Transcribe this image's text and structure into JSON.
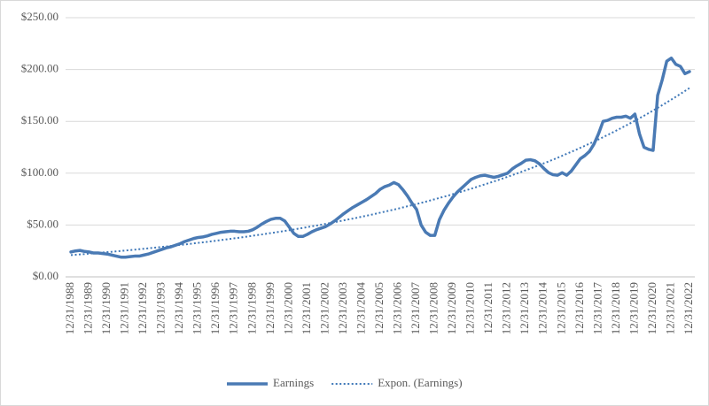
{
  "chart_data": {
    "type": "line",
    "categories": [
      "12/31/1988",
      null,
      null,
      null,
      "12/31/1989",
      null,
      null,
      null,
      "12/31/1990",
      null,
      null,
      null,
      "12/31/1991",
      null,
      null,
      null,
      "12/31/1992",
      null,
      null,
      null,
      "12/31/1993",
      null,
      null,
      null,
      "12/31/1994",
      null,
      null,
      null,
      "12/31/1995",
      null,
      null,
      null,
      "12/31/1996",
      null,
      null,
      null,
      "12/31/1997",
      null,
      null,
      null,
      "12/31/1998",
      null,
      null,
      null,
      "12/31/1999",
      null,
      null,
      null,
      "12/31/2000",
      null,
      null,
      null,
      "12/31/2001",
      null,
      null,
      null,
      "12/31/2002",
      null,
      null,
      null,
      "12/31/2003",
      null,
      null,
      null,
      "12/31/2004",
      null,
      null,
      null,
      "12/31/2005",
      null,
      null,
      null,
      "12/31/2006",
      null,
      null,
      null,
      "12/31/2007",
      null,
      null,
      null,
      "12/31/2008",
      null,
      null,
      null,
      "12/31/2009",
      null,
      null,
      null,
      "12/31/2010",
      null,
      null,
      null,
      "12/31/2011",
      null,
      null,
      null,
      "12/31/2012",
      null,
      null,
      null,
      "12/31/2013",
      null,
      null,
      null,
      "12/31/2014",
      null,
      null,
      null,
      "12/31/2015",
      null,
      null,
      null,
      "12/31/2016",
      null,
      null,
      null,
      "12/31/2017",
      null,
      null,
      null,
      "12/31/2018",
      null,
      null,
      null,
      "12/31/2019",
      null,
      null,
      null,
      "12/31/2020",
      null,
      null,
      null,
      "12/31/2021",
      null,
      null,
      null,
      "12/31/2022"
    ],
    "series": [
      {
        "name": "Earnings",
        "color": "#4a7ab4",
        "line_style": "solid",
        "values": [
          24,
          25,
          25.5,
          24.5,
          24,
          23,
          23,
          22.5,
          22,
          21,
          20,
          19,
          19,
          19.5,
          20,
          20,
          21,
          22,
          23.5,
          25,
          26.5,
          28,
          29,
          30.5,
          32,
          34,
          35.5,
          37,
          38,
          38.5,
          39.5,
          41,
          42,
          43,
          43.5,
          44,
          44,
          43.5,
          43.5,
          44,
          45.5,
          48,
          51,
          53.5,
          55.5,
          56.5,
          56.5,
          54,
          48,
          42,
          39,
          39,
          41,
          43.5,
          45.5,
          47,
          48.5,
          51,
          54,
          57.5,
          61,
          64,
          67,
          69.5,
          72,
          74.5,
          77.5,
          80.5,
          84.5,
          87,
          88.5,
          91,
          89,
          84,
          78,
          71,
          65,
          50,
          43,
          40,
          40,
          55,
          64,
          71,
          77,
          82,
          86,
          90,
          94,
          96,
          97.5,
          98,
          97,
          96,
          97,
          98.5,
          100,
          104,
          107,
          109.5,
          112.5,
          113,
          112,
          109,
          104.5,
          100.5,
          98.5,
          98,
          100.5,
          98,
          102,
          108,
          114,
          117,
          121,
          128,
          138,
          150,
          151,
          153,
          154,
          154,
          155,
          153,
          157,
          138,
          125,
          123,
          122,
          175,
          190,
          208,
          211,
          205,
          203,
          196,
          198
        ]
      },
      {
        "name": "Expon. (Earnings)",
        "color": "#3f78b8",
        "line_style": "dotted",
        "values": [
          21,
          21.3,
          21.7,
          22,
          22.4,
          22.7,
          23.1,
          23.5,
          23.9,
          24.2,
          24.6,
          25,
          25.4,
          25.8,
          26.2,
          26.7,
          27.1,
          27.5,
          28,
          28.4,
          28.9,
          29.3,
          29.8,
          30.3,
          30.8,
          31.2,
          31.7,
          32.3,
          32.8,
          33.3,
          33.8,
          34.4,
          34.9,
          35.5,
          36,
          36.6,
          37.2,
          37.8,
          38.4,
          39,
          39.7,
          40.3,
          40.9,
          41.6,
          42.3,
          42.9,
          43.6,
          44.3,
          45,
          45.7,
          46.5,
          47.2,
          48,
          48.8,
          49.5,
          50.3,
          51.1,
          51.9,
          52.8,
          53.6,
          54.5,
          55.4,
          56.2,
          57.1,
          58.1,
          59,
          59.9,
          60.9,
          61.9,
          62.9,
          63.9,
          64.9,
          65.9,
          67,
          68.1,
          69.1,
          70.2,
          71.4,
          72.5,
          73.7,
          74.9,
          76.1,
          77.3,
          78.5,
          79.8,
          81,
          82.3,
          83.7,
          85,
          86.4,
          87.8,
          89.2,
          90.6,
          92,
          93.5,
          95,
          96.5,
          98.1,
          99.6,
          101.2,
          102.9,
          104.5,
          106.2,
          107.9,
          109.6,
          111.3,
          113.1,
          114.9,
          116.8,
          118.7,
          120.6,
          122.5,
          124.5,
          126.4,
          128.5,
          130.5,
          132.6,
          134.7,
          136.9,
          139.1,
          141.3,
          143.6,
          145.9,
          148.2,
          150.6,
          153,
          155.4,
          157.9,
          160.5,
          163,
          165.6,
          168.3,
          171,
          173.7,
          176.5,
          179.3,
          182.2
        ]
      }
    ],
    "ylim": [
      0,
      250
    ],
    "yticks": [
      {
        "value": 0,
        "label": "$0.00"
      },
      {
        "value": 50,
        "label": "$50.00"
      },
      {
        "value": 100,
        "label": "$100.00"
      },
      {
        "value": 150,
        "label": "$150.00"
      },
      {
        "value": 200,
        "label": "$200.00"
      },
      {
        "value": 250,
        "label": "$250.00"
      }
    ],
    "grid": true,
    "legend": "bottom"
  }
}
